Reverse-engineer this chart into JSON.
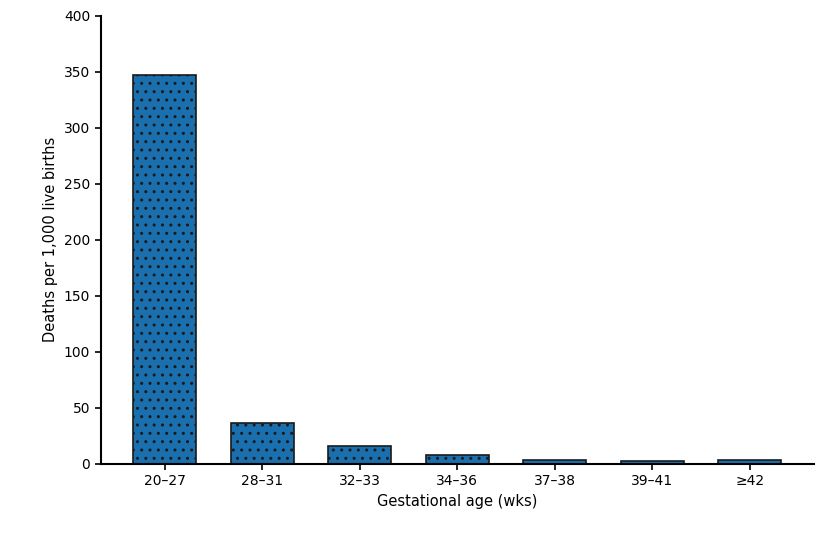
{
  "categories": [
    "20–27",
    "28–31",
    "32–33",
    "34–36",
    "37–38",
    "39–41",
    "≥42"
  ],
  "values": [
    347,
    36,
    16,
    8,
    3.2,
    2.5,
    3.2
  ],
  "bar_color": "#1a6faf",
  "bar_edgecolor": "#1a1a1a",
  "xlabel": "Gestational age (wks)",
  "ylabel": "Deaths per 1,000 live births",
  "ylim": [
    0,
    400
  ],
  "yticks": [
    0,
    50,
    100,
    150,
    200,
    250,
    300,
    350,
    400
  ],
  "background_color": "#ffffff",
  "bar_width": 0.65,
  "xlabel_fontsize": 10.5,
  "ylabel_fontsize": 10.5,
  "tick_fontsize": 10,
  "spine_linewidth": 1.5,
  "hatch": ".."
}
